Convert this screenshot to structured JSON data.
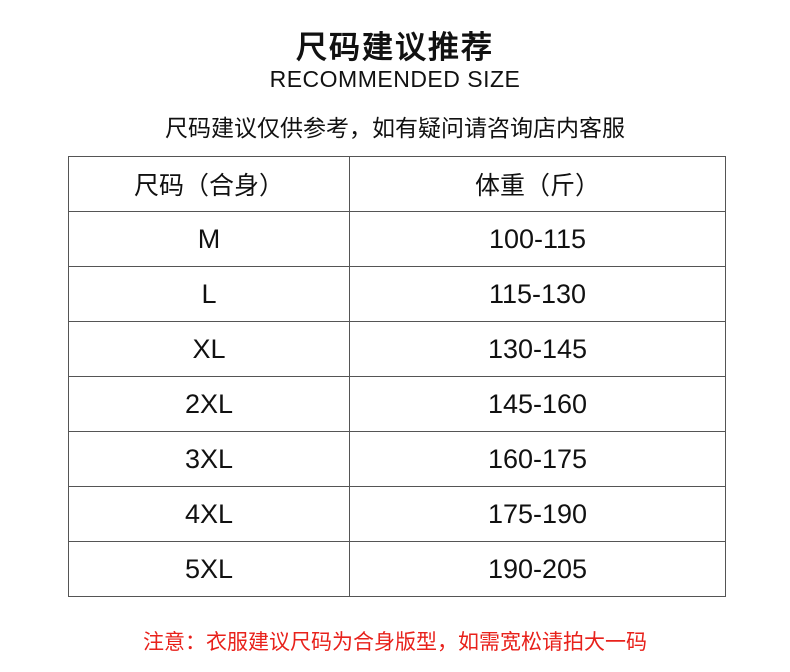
{
  "title": "尺码建议推荐",
  "subtitle": "RECOMMENDED SIZE",
  "note": "尺码建议仅供参考，如有疑问请咨询店内客服",
  "table": {
    "headers": [
      "尺码（合身）",
      "体重（斤）"
    ],
    "rows": [
      [
        "M",
        "100-115"
      ],
      [
        "L",
        "115-130"
      ],
      [
        "XL",
        "130-145"
      ],
      [
        "2XL",
        "145-160"
      ],
      [
        "3XL",
        "160-175"
      ],
      [
        "4XL",
        "175-190"
      ],
      [
        "5XL",
        "190-205"
      ]
    ]
  },
  "footer": "注意：衣服建议尺码为合身版型，如需宽松请拍大一码",
  "colors": {
    "footer": "#e8211b",
    "border": "#555555"
  }
}
